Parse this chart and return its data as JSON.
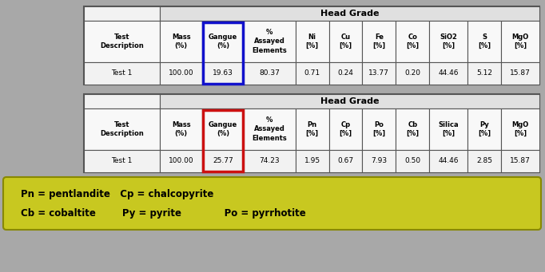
{
  "background_color": "#a8a8a8",
  "table1": {
    "title": "Head Grade",
    "headers": [
      "Test\nDescription",
      "Mass\n(%)",
      "Gangue\n(%)",
      "%\nAssayed\nElements",
      "Ni\n[%]",
      "Cu\n[%]",
      "Fe\n[%]",
      "Co\n[%]",
      "SiO2\n[%]",
      "S\n[%]",
      "MgO\n[%]"
    ],
    "row": [
      "Test 1",
      "100.00",
      "19.63",
      "80.37",
      "0.71",
      "0.24",
      "13.77",
      "0.20",
      "44.46",
      "5.12",
      "15.87"
    ],
    "gangue_highlight_color": "#1111cc",
    "gangue_col_index": 2
  },
  "table2": {
    "title": "Head Grade",
    "headers": [
      "Test\nDescription",
      "Mass\n(%)",
      "Gangue\n(%)",
      "%\nAssayed\nElements",
      "Pn\n[%]",
      "Cp\n[%]",
      "Po\n[%]",
      "Cb\n[%]",
      "Silica\n[%]",
      "Py\n[%]",
      "MgO\n[%]"
    ],
    "row": [
      "Test 1",
      "100.00",
      "25.77",
      "74.23",
      "1.95",
      "0.67",
      "7.93",
      "0.50",
      "44.46",
      "2.85",
      "15.87"
    ],
    "gangue_highlight_color": "#cc1111",
    "gangue_col_index": 2
  },
  "legend_bg": "#c8c820",
  "legend_text_line1": "Pn = pentlandite   Cp = chalcopyrite",
  "legend_text_line2": "Cb = cobaltite        Py = pyrite             Po = pyrrhotite",
  "table_outer_bg": "#f2f2f2",
  "header_bg": "#f8f8f8",
  "title_bg": "#e0e0e0",
  "cell_bg": "#f2f2f2",
  "border_color": "#555555"
}
